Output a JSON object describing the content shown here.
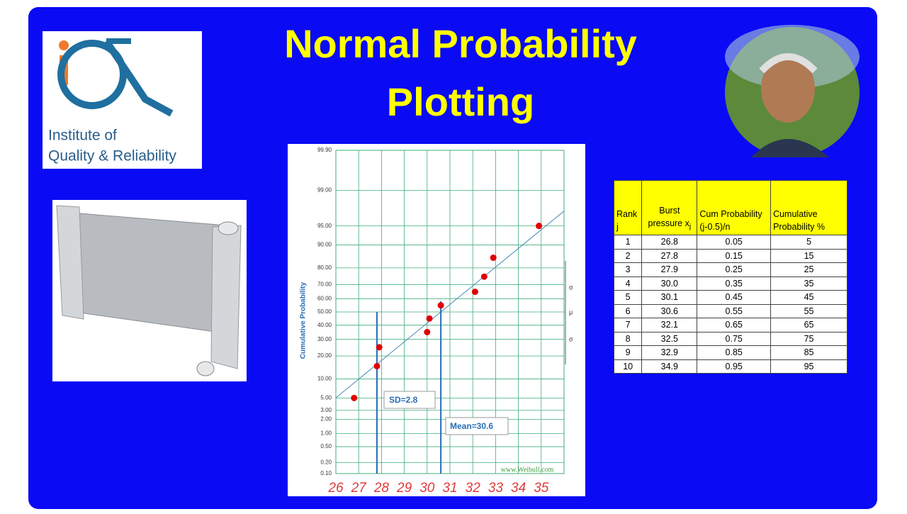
{
  "slide": {
    "title_lines": [
      "Normal Probability",
      "Plotting"
    ],
    "logo": {
      "lines": [
        "Institute of",
        "Quality & Reliability"
      ]
    }
  },
  "chart_data": {
    "type": "scatter",
    "y_label": "Cumulative Probability",
    "watermark": "www.Weibull.com",
    "y_scale": "probability",
    "x": [
      26.8,
      27.8,
      27.9,
      30.0,
      30.1,
      30.6,
      32.1,
      32.5,
      32.9,
      34.9
    ],
    "values": [
      5,
      15,
      25,
      35,
      45,
      55,
      65,
      75,
      85,
      95
    ],
    "color": "#e00000",
    "xlim": [
      26,
      36
    ],
    "xticks": [
      26,
      27,
      28,
      29,
      30,
      31,
      32,
      33,
      34,
      35
    ],
    "ylim": [
      0.1,
      99.9
    ],
    "yticks": [
      {
        "value": 0.1,
        "label": "0.10"
      },
      {
        "value": 0.2,
        "label": "0.20"
      },
      {
        "value": 0.5,
        "label": "0.50"
      },
      {
        "value": 1,
        "label": "1.00"
      },
      {
        "value": 2,
        "label": "2.00"
      },
      {
        "value": 3,
        "label": "3.00"
      },
      {
        "value": 5,
        "label": "5.00"
      },
      {
        "value": 10,
        "label": "10.00"
      },
      {
        "value": 20,
        "label": "20.00"
      },
      {
        "value": 30,
        "label": "30.00"
      },
      {
        "value": 40,
        "label": "40.00"
      },
      {
        "value": 50,
        "label": "50.00"
      },
      {
        "value": 60,
        "label": "60.00"
      },
      {
        "value": 70,
        "label": "70.00"
      },
      {
        "value": 80,
        "label": "80.00"
      },
      {
        "value": 90,
        "label": "90.00"
      },
      {
        "value": 95,
        "label": "95.00"
      },
      {
        "value": 99,
        "label": "99.00"
      },
      {
        "value": 99.9,
        "label": "99.90"
      }
    ],
    "grid": true,
    "fit": {
      "mean": 30.6,
      "sd": 2.8,
      "mean_label": "Mean=30.6",
      "sd_label": "SD=2.8"
    },
    "side_labels": [
      "σ",
      "μ",
      "σ"
    ]
  },
  "table": {
    "header": [
      {
        "text": "Rank j"
      },
      {
        "text": "Burst pressure x",
        "sub": "j"
      },
      {
        "text": "Cum Probability (j-0.5)/n"
      },
      {
        "text": "Cumulative Probability %"
      }
    ],
    "rows": [
      [
        "1",
        "26.8",
        "0.05",
        "5"
      ],
      [
        "2",
        "27.8",
        "0.15",
        "15"
      ],
      [
        "3",
        "27.9",
        "0.25",
        "25"
      ],
      [
        "4",
        "30.0",
        "0.35",
        "35"
      ],
      [
        "5",
        "30.1",
        "0.45",
        "45"
      ],
      [
        "6",
        "30.6",
        "0.55",
        "55"
      ],
      [
        "7",
        "32.1",
        "0.65",
        "65"
      ],
      [
        "8",
        "32.5",
        "0.75",
        "75"
      ],
      [
        "9",
        "32.9",
        "0.85",
        "85"
      ],
      [
        "10",
        "34.9",
        "0.95",
        "95"
      ]
    ]
  }
}
